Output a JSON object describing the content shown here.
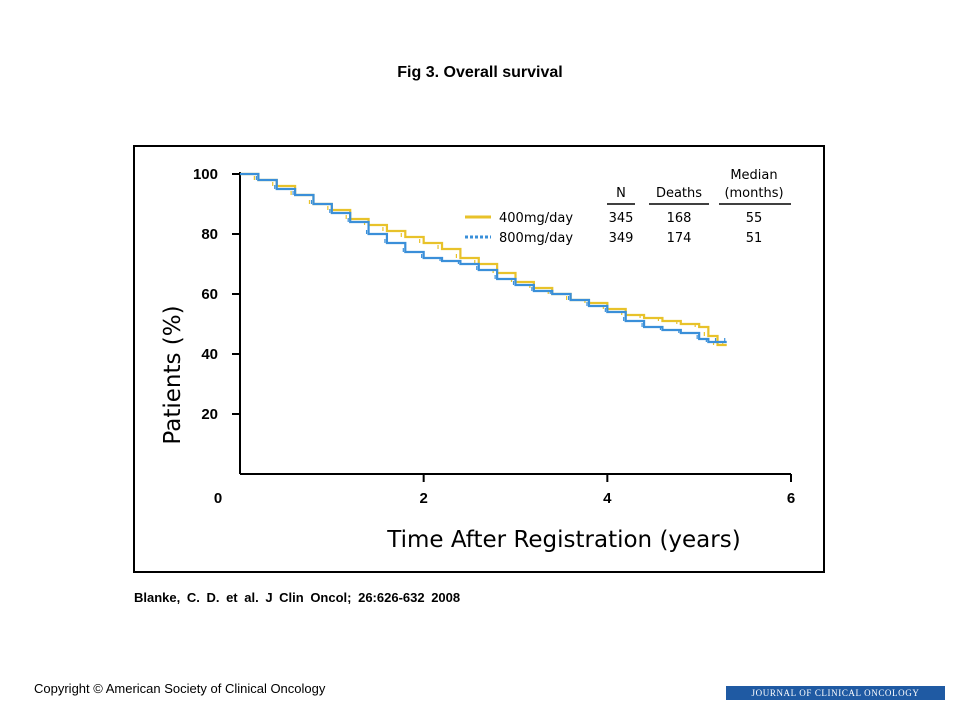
{
  "slide": {
    "title": "Fig 3. Overall survival",
    "citation": "Blanke,  C. D. et al. J Clin Oncol;  26:626-632  2008",
    "copyright": "Copyright © American Society of Clinical Oncology",
    "journal_banner": "JOURNAL OF CLINICAL ONCOLOGY"
  },
  "chart_data": {
    "type": "line",
    "title": "",
    "xlabel": "Time After Registration (years)",
    "ylabel": "Patients (%)",
    "xlim": [
      0,
      6
    ],
    "ylim": [
      0,
      100
    ],
    "x_ticks": [
      "0",
      "2",
      "4",
      "6"
    ],
    "y_ticks": [
      "20",
      "40",
      "60",
      "80",
      "100"
    ],
    "grid": false,
    "legend_placement": "top-right",
    "legend_headers": {
      "n": "N",
      "deaths": "Deaths",
      "median_top": "Median",
      "median_bottom": "(months)"
    },
    "series": [
      {
        "name": "400mg/day",
        "color": "#e8c22a",
        "line_style": "solid",
        "n": "345",
        "deaths": "168",
        "median": "55",
        "x": [
          0,
          0.2,
          0.4,
          0.6,
          0.8,
          1.0,
          1.2,
          1.4,
          1.6,
          1.8,
          2.0,
          2.2,
          2.4,
          2.6,
          2.8,
          3.0,
          3.2,
          3.4,
          3.6,
          3.8,
          4.0,
          4.2,
          4.4,
          4.6,
          4.8,
          5.0,
          5.1,
          5.2,
          5.3
        ],
        "y": [
          100,
          98,
          96,
          93,
          90,
          88,
          85,
          83,
          81,
          79,
          77,
          75,
          72,
          70,
          67,
          64,
          62,
          60,
          58,
          57,
          55,
          53,
          52,
          51,
          50,
          49,
          46,
          43,
          43
        ]
      },
      {
        "name": "800mg/day",
        "color": "#3a8fd9",
        "line_style": "dashed",
        "n": "349",
        "deaths": "174",
        "median": "51",
        "x": [
          0,
          0.2,
          0.4,
          0.6,
          0.8,
          1.0,
          1.2,
          1.4,
          1.6,
          1.8,
          2.0,
          2.2,
          2.4,
          2.6,
          2.8,
          3.0,
          3.2,
          3.4,
          3.6,
          3.8,
          4.0,
          4.2,
          4.4,
          4.6,
          4.8,
          5.0,
          5.1,
          5.2,
          5.3
        ],
        "y": [
          100,
          98,
          95,
          93,
          90,
          87,
          84,
          80,
          77,
          74,
          72,
          71,
          70,
          68,
          65,
          63,
          61,
          60,
          58,
          56,
          54,
          51,
          49,
          48,
          47,
          45,
          44,
          44,
          44
        ]
      }
    ]
  }
}
